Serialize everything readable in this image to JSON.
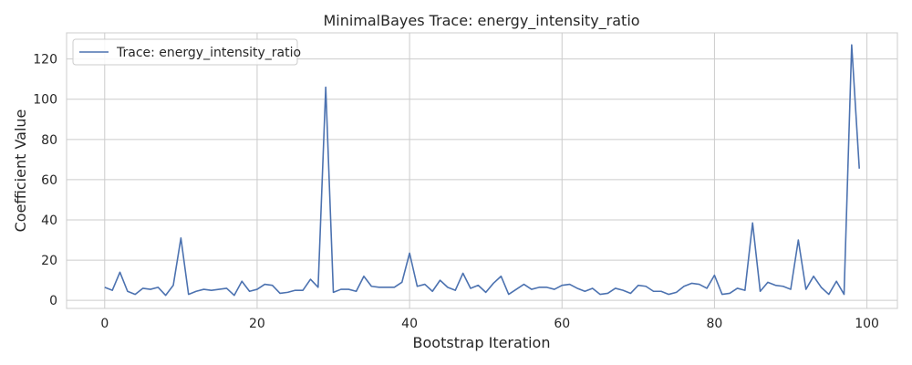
{
  "chart_data": {
    "type": "line",
    "title": "MinimalBayes Trace: energy_intensity_ratio",
    "xlabel": "Bootstrap Iteration",
    "ylabel": "Coefficient Value",
    "xlim": [
      -5,
      104
    ],
    "ylim": [
      -4,
      133
    ],
    "xticks": [
      0,
      20,
      40,
      60,
      80,
      100
    ],
    "yticks": [
      0,
      20,
      40,
      60,
      80,
      100,
      120
    ],
    "grid": true,
    "legend_position": "top-left",
    "series": [
      {
        "name": "Trace: energy_intensity_ratio",
        "color": "#4c72b0",
        "x": [
          0,
          1,
          2,
          3,
          4,
          5,
          6,
          7,
          8,
          9,
          10,
          11,
          12,
          13,
          14,
          15,
          16,
          17,
          18,
          19,
          20,
          21,
          22,
          23,
          24,
          25,
          26,
          27,
          28,
          29,
          30,
          31,
          32,
          33,
          34,
          35,
          36,
          37,
          38,
          39,
          40,
          41,
          42,
          43,
          44,
          45,
          46,
          47,
          48,
          49,
          50,
          51,
          52,
          53,
          54,
          55,
          56,
          57,
          58,
          59,
          60,
          61,
          62,
          63,
          64,
          65,
          66,
          67,
          68,
          69,
          70,
          71,
          72,
          73,
          74,
          75,
          76,
          77,
          78,
          79,
          80,
          81,
          82,
          83,
          84,
          85,
          86,
          87,
          88,
          89,
          90,
          91,
          92,
          93,
          94,
          95,
          96,
          97,
          98,
          99
        ],
        "values": [
          6.5,
          5,
          14,
          4.5,
          3,
          6,
          5.5,
          6.5,
          2.5,
          7.5,
          31,
          3,
          4.5,
          5.5,
          5,
          5.5,
          6,
          2.5,
          9.5,
          4.5,
          5.5,
          8,
          7.5,
          3.5,
          4,
          5,
          5,
          10.5,
          6.5,
          106,
          4,
          5.5,
          5.5,
          4.5,
          12,
          7,
          6.5,
          6.5,
          6.5,
          9,
          23.5,
          7,
          8,
          4.5,
          10,
          6.5,
          5,
          13.5,
          6,
          7.5,
          4,
          8.5,
          12,
          3,
          5.5,
          8,
          5.5,
          6.5,
          6.5,
          5.5,
          7.5,
          8,
          6,
          4.5,
          6,
          3,
          3.5,
          6,
          5,
          3.5,
          7.5,
          7,
          4.5,
          4.5,
          3,
          4,
          7,
          8.5,
          8,
          6,
          12.5,
          3,
          3.5,
          6,
          5,
          38.5,
          4.5,
          9,
          7.5,
          7,
          5.5,
          30,
          5.5,
          12,
          6.5,
          3,
          9.5,
          3,
          127,
          65.5
        ]
      }
    ]
  }
}
